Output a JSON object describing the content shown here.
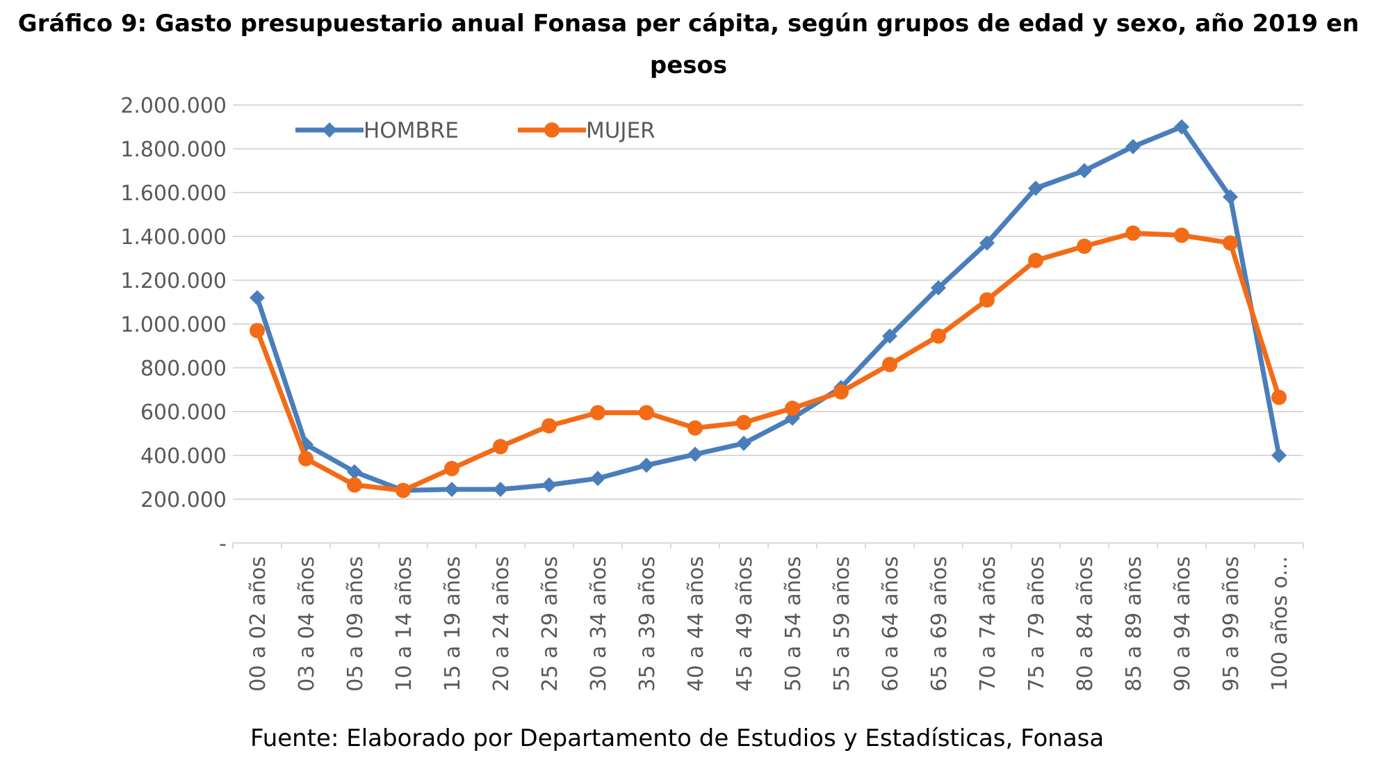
{
  "chart_data": {
    "type": "line",
    "title_line1": "Gráfico 9: Gasto presupuestario anual Fonasa per cápita, según grupos de edad y sexo, año 2019 en",
    "title_line2": "pesos",
    "source": "Fuente: Elaborado por Departamento de Estudios y Estadísticas, Fonasa",
    "categories": [
      "00 a 02 años",
      "03 a 04 años",
      "05 a 09 años",
      "10 a 14 años",
      "15 a 19 años",
      "20 a 24 años",
      "25 a 29 años",
      "30 a 34 años",
      "35 a 39 años",
      "40 a 44 años",
      "45 a 49 años",
      "50 a 54 años",
      "55 a 59 años",
      "60 a 64 años",
      "65 a 69 años",
      "70 a 74 años",
      "75 a 79 años",
      "80 a 84 años",
      "85 a 89 años",
      "90 a 94 años",
      "95 a 99 años",
      "100 años o..."
    ],
    "y_ticks": [
      "-",
      "200.000",
      "400.000",
      "600.000",
      "800.000",
      "1.000.000",
      "1.200.000",
      "1.400.000",
      "1.600.000",
      "1.800.000",
      "2.000.000"
    ],
    "ylim": [
      0,
      2000000
    ],
    "grid": true,
    "legend_position": "top-left",
    "series": [
      {
        "name": "HOMBRE",
        "color": "#4a7ebb",
        "marker": "diamond",
        "values": [
          1120000,
          450000,
          325000,
          240000,
          245000,
          245000,
          265000,
          295000,
          355000,
          405000,
          455000,
          570000,
          710000,
          945000,
          1165000,
          1370000,
          1620000,
          1700000,
          1810000,
          1900000,
          1580000,
          400000
        ]
      },
      {
        "name": "MUJER",
        "color": "#f36b17",
        "marker": "circle",
        "values": [
          970000,
          385000,
          265000,
          240000,
          340000,
          440000,
          535000,
          595000,
          595000,
          525000,
          550000,
          615000,
          690000,
          815000,
          945000,
          1110000,
          1290000,
          1355000,
          1415000,
          1405000,
          1370000,
          665000
        ]
      }
    ]
  }
}
